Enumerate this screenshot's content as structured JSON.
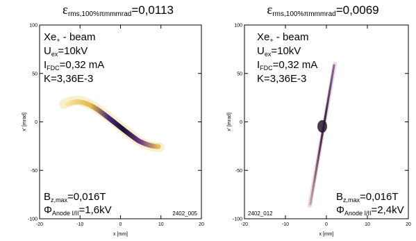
{
  "chart_data": [
    {
      "type": "phase-space",
      "title": {
        "symbol": "ε",
        "subscript": "rms,100%πmmmrad",
        "value": "=0,0113"
      },
      "xlabel": "x [mm]",
      "ylabel": "x' [mrad]",
      "xlim": [
        -20,
        20
      ],
      "xticks": [
        -20,
        -10,
        0,
        10,
        20
      ],
      "ylim": [
        -100,
        100
      ],
      "yticks": [
        -100,
        -50,
        0,
        50,
        100
      ],
      "annotations_top": [
        {
          "main": "Xe",
          "sub": "+",
          "rest": " - beam"
        },
        {
          "main": "U",
          "sub": "ex",
          "rest": "=10kV"
        },
        {
          "main": "I",
          "sub": "FDC",
          "rest": "=0,32 mA"
        },
        {
          "main": "K=3,36E-3"
        }
      ],
      "annotations_bottom": [
        {
          "main": "B",
          "sub": "z,max",
          "rest": "=0,016T"
        },
        {
          "main": "Φ",
          "sub": "Anode I/II",
          "rest": "=1,6kV"
        }
      ],
      "run_id": "2402_005"
    },
    {
      "type": "phase-space",
      "title": {
        "symbol": "ε",
        "subscript": "rms,100%πmmmrad",
        "value": "=0,0069"
      },
      "xlabel": "x [mm]",
      "ylabel": "x' [mrad]",
      "xlim": [
        -20,
        20
      ],
      "xticks": [
        -20,
        -10,
        0,
        10,
        20
      ],
      "ylim": [
        -100,
        100
      ],
      "yticks": [
        -100,
        -50,
        0,
        50,
        100
      ],
      "annotations_top": [
        {
          "main": "Xe",
          "sub": "+",
          "rest": " - beam"
        },
        {
          "main": "U",
          "sub": "ex",
          "rest": "=10kV"
        },
        {
          "main": "I",
          "sub": "FDC",
          "rest": "=0,32 mA"
        },
        {
          "main": "K=3,36E-3"
        }
      ],
      "annotations_bottom": [
        {
          "main": "B",
          "sub": "z,max",
          "rest": "=0,016T"
        },
        {
          "main": "Φ",
          "sub": "Anode I/II",
          "rest": "=2,4kV"
        }
      ],
      "run_id": "2402_012"
    }
  ]
}
